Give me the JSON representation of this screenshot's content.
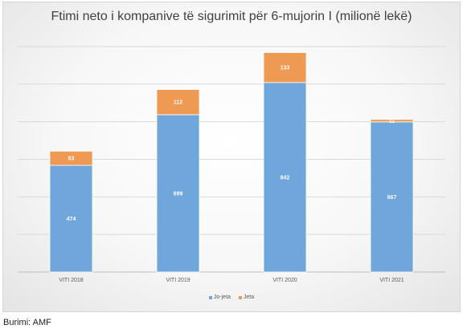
{
  "chart_data": {
    "type": "bar",
    "stacked": true,
    "title": "Ftimi neto i kompanive të sigurimit për 6-mujorin I (milionë lekë)",
    "categories": [
      "VITI 2018",
      "VITI 2019",
      "VITI 2020",
      "VITI 2021"
    ],
    "series": [
      {
        "name": "Jo-jeta",
        "color": "#6fa6dc",
        "values": [
          474,
          699,
          842,
          667
        ]
      },
      {
        "name": "Jeta",
        "color": "#ee9a52",
        "values": [
          63,
          112,
          133,
          11
        ]
      }
    ],
    "data_labels": true,
    "ylim": [
      0,
      1100
    ],
    "gridlines": true,
    "legend_position": "bottom"
  },
  "source": "Burimi: AMF"
}
